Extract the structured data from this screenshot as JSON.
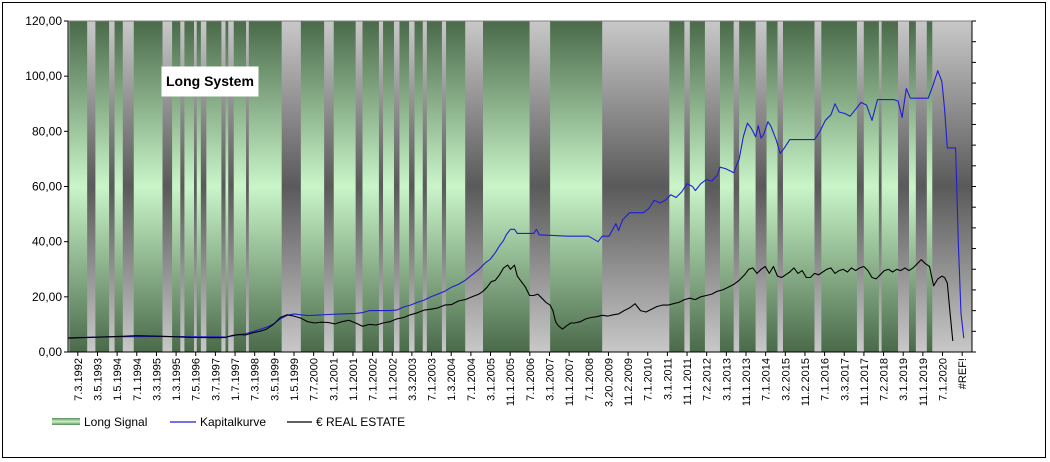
{
  "chart_data": {
    "type": "line",
    "title": "Long System",
    "ylim": [
      0,
      120
    ],
    "yticks": [
      "0,00",
      "20,00",
      "40,00",
      "60,00",
      "80,00",
      "100,00",
      "120,00"
    ],
    "ytick_values": [
      0,
      20,
      40,
      60,
      80,
      100,
      120
    ],
    "xticks": [
      "7.3.1992",
      "3.5.1993",
      "1.5.1994",
      "7.1.1994",
      "3.3.1995",
      "1.3.1995",
      "7.5.1996",
      "3.7.1997",
      "1.7.1997",
      "7.3.1998",
      "3.5.1999",
      "1.5.1999",
      "7.7.2000",
      "3.1.2001",
      "1.1.2001",
      "7.1.2002",
      "1.1.2002",
      "3.3.2003",
      "7.1.2003",
      "1.3.2004",
      "7.1.2004",
      "3.1.2005",
      "11.1.2005",
      "7.1.2006",
      "3.1.2007",
      "11.1.2007",
      "7.1.2008",
      "3.20.2009",
      "11.2.2009",
      "7.1.2010",
      "3.1.2011",
      "11.1.2011",
      "7.2.2012",
      "3.1.2013",
      "11.1.2013",
      "7.1.2014",
      "3.2.2015",
      "11.2.2015",
      "7.1.2016",
      "3.3.2017",
      "11.1.2017",
      "7.2.2018",
      "3.1.2019",
      "11.1.2019",
      "7.1.2020",
      "#REF!"
    ],
    "legend": [
      {
        "name": "Long Signal",
        "kind": "band",
        "color": "#8fd08f"
      },
      {
        "name": "Kapitalkurve",
        "kind": "line",
        "color": "#1f1fd0"
      },
      {
        "name": "€ REAL ESTATE",
        "kind": "line",
        "color": "#000000"
      }
    ],
    "long_signal_periods": [
      [
        1,
        14
      ],
      [
        20,
        30
      ],
      [
        34,
        40
      ],
      [
        48,
        69
      ],
      [
        76,
        82
      ],
      [
        85,
        92
      ],
      [
        94,
        97
      ],
      [
        101,
        112
      ],
      [
        115,
        117
      ],
      [
        121,
        130
      ],
      [
        132,
        156
      ],
      [
        170,
        187
      ],
      [
        194,
        210
      ],
      [
        215,
        227
      ],
      [
        230,
        238
      ],
      [
        242,
        249
      ],
      [
        253,
        259
      ],
      [
        262,
        273
      ],
      [
        276,
        290
      ],
      [
        303,
        337
      ],
      [
        352,
        390
      ],
      [
        439,
        450
      ],
      [
        454,
        465
      ],
      [
        476,
        486
      ],
      [
        490,
        502
      ],
      [
        510,
        518
      ],
      [
        522,
        545
      ],
      [
        550,
        576
      ],
      [
        581,
        592
      ],
      [
        594,
        606
      ],
      [
        614,
        619
      ],
      [
        627,
        631
      ]
    ],
    "series": [
      {
        "name": "Kapitalkurve",
        "color": "#1f1fd0",
        "points": [
          [
            0,
            5.2
          ],
          [
            10,
            5.3
          ],
          [
            30,
            5.5
          ],
          [
            60,
            5.6
          ],
          [
            80,
            5.6
          ],
          [
            100,
            5.5
          ],
          [
            110,
            5.5
          ],
          [
            115,
            5.4
          ],
          [
            120,
            5.8
          ],
          [
            125,
            6.3
          ],
          [
            130,
            6.7
          ],
          [
            135,
            7.4
          ],
          [
            140,
            8.2
          ],
          [
            145,
            9.0
          ],
          [
            150,
            10.2
          ],
          [
            155,
            12.0
          ],
          [
            160,
            13.3
          ],
          [
            165,
            13.8
          ],
          [
            170,
            13.5
          ],
          [
            175,
            13.2
          ],
          [
            180,
            13.3
          ],
          [
            190,
            13.6
          ],
          [
            200,
            13.8
          ],
          [
            210,
            14.0
          ],
          [
            215,
            14.3
          ],
          [
            220,
            15.0
          ],
          [
            235,
            15.0
          ],
          [
            240,
            15.2
          ],
          [
            245,
            16.3
          ],
          [
            250,
            17.0
          ],
          [
            255,
            18.0
          ],
          [
            260,
            18.8
          ],
          [
            265,
            20.0
          ],
          [
            270,
            21.0
          ],
          [
            275,
            22.0
          ],
          [
            280,
            23.5
          ],
          [
            285,
            24.5
          ],
          [
            290,
            26.0
          ],
          [
            295,
            28.0
          ],
          [
            300,
            30.0
          ],
          [
            305,
            32.5
          ],
          [
            308,
            33.5
          ],
          [
            312,
            36.0
          ],
          [
            315,
            38.5
          ],
          [
            318,
            40.5
          ],
          [
            320,
            42.5
          ],
          [
            323,
            44.5
          ],
          [
            326,
            44.5
          ],
          [
            328,
            43.0
          ],
          [
            340,
            43.0
          ],
          [
            342,
            44.5
          ],
          [
            344,
            42.5
          ],
          [
            365,
            42.0
          ],
          [
            380,
            42.0
          ],
          [
            387,
            40.0
          ],
          [
            390,
            42.0
          ],
          [
            395,
            42.0
          ],
          [
            400,
            46.5
          ],
          [
            402,
            44.0
          ],
          [
            405,
            48.0
          ],
          [
            410,
            50.5
          ],
          [
            420,
            50.5
          ],
          [
            424,
            52.0
          ],
          [
            428,
            55.0
          ],
          [
            432,
            54.0
          ],
          [
            436,
            55.0
          ],
          [
            440,
            57.0
          ],
          [
            444,
            56.0
          ],
          [
            448,
            58.0
          ],
          [
            452,
            61.0
          ],
          [
            456,
            60.0
          ],
          [
            458,
            58.5
          ],
          [
            462,
            61.0
          ],
          [
            466,
            62.5
          ],
          [
            470,
            62.0
          ],
          [
            474,
            64.0
          ],
          [
            476,
            67.0
          ],
          [
            480,
            66.5
          ],
          [
            484,
            65.5
          ],
          [
            486,
            65.0
          ],
          [
            490,
            70.0
          ],
          [
            493,
            78.0
          ],
          [
            496,
            83.0
          ],
          [
            499,
            81.0
          ],
          [
            502,
            78.0
          ],
          [
            504,
            82.0
          ],
          [
            506,
            77.5
          ],
          [
            508,
            79.0
          ],
          [
            511,
            83.5
          ],
          [
            513,
            82.0
          ],
          [
            517,
            77.0
          ],
          [
            520,
            72.0
          ],
          [
            523,
            74.0
          ],
          [
            527,
            77.0
          ],
          [
            545,
            77.0
          ],
          [
            549,
            80.0
          ],
          [
            553,
            84.0
          ],
          [
            557,
            86.0
          ],
          [
            560,
            90.0
          ],
          [
            563,
            87.0
          ],
          [
            567,
            86.5
          ],
          [
            571,
            85.5
          ],
          [
            575,
            88.0
          ],
          [
            579,
            90.5
          ],
          [
            583,
            89.5
          ],
          [
            587,
            84.0
          ],
          [
            591,
            91.5
          ],
          [
            603,
            91.5
          ],
          [
            606,
            91.0
          ],
          [
            609,
            85.0
          ],
          [
            612,
            95.5
          ],
          [
            615,
            92.0
          ],
          [
            628,
            92.0
          ],
          [
            631,
            96.0
          ],
          [
            635,
            102.0
          ],
          [
            638,
            98.0
          ],
          [
            640,
            88.0
          ],
          [
            642,
            74.0
          ],
          [
            648,
            74.0
          ],
          [
            650,
            40.0
          ],
          [
            652,
            14.0
          ],
          [
            654,
            5.0
          ]
        ]
      },
      {
        "name": "€ REAL ESTATE",
        "color": "#000000",
        "points": [
          [
            0,
            5.0
          ],
          [
            10,
            5.2
          ],
          [
            30,
            5.5
          ],
          [
            50,
            5.9
          ],
          [
            70,
            5.7
          ],
          [
            90,
            5.3
          ],
          [
            110,
            5.2
          ],
          [
            115,
            5.3
          ],
          [
            120,
            6.0
          ],
          [
            125,
            6.3
          ],
          [
            130,
            6.2
          ],
          [
            135,
            7.0
          ],
          [
            140,
            7.5
          ],
          [
            145,
            8.3
          ],
          [
            150,
            10.0
          ],
          [
            155,
            12.5
          ],
          [
            160,
            13.5
          ],
          [
            165,
            13.0
          ],
          [
            170,
            12.3
          ],
          [
            175,
            11.0
          ],
          [
            180,
            10.5
          ],
          [
            185,
            10.8
          ],
          [
            190,
            10.7
          ],
          [
            195,
            10.2
          ],
          [
            200,
            11.0
          ],
          [
            205,
            11.5
          ],
          [
            210,
            10.5
          ],
          [
            215,
            9.3
          ],
          [
            220,
            10.0
          ],
          [
            225,
            9.8
          ],
          [
            230,
            10.5
          ],
          [
            235,
            11.0
          ],
          [
            240,
            12.0
          ],
          [
            245,
            12.5
          ],
          [
            250,
            13.5
          ],
          [
            255,
            14.2
          ],
          [
            260,
            15.2
          ],
          [
            265,
            15.5
          ],
          [
            270,
            16.0
          ],
          [
            275,
            17.0
          ],
          [
            280,
            17.2
          ],
          [
            285,
            18.5
          ],
          [
            290,
            19.0
          ],
          [
            295,
            20.0
          ],
          [
            300,
            21.0
          ],
          [
            303,
            22.0
          ],
          [
            306,
            23.5
          ],
          [
            309,
            25.5
          ],
          [
            312,
            26.0
          ],
          [
            315,
            28.0
          ],
          [
            318,
            30.5
          ],
          [
            321,
            31.5
          ],
          [
            323,
            30.0
          ],
          [
            326,
            31.5
          ],
          [
            328,
            27.5
          ],
          [
            331,
            25.5
          ],
          [
            334,
            23.5
          ],
          [
            337,
            20.5
          ],
          [
            340,
            20.5
          ],
          [
            343,
            21.0
          ],
          [
            346,
            19.5
          ],
          [
            349,
            18.0
          ],
          [
            352,
            17.0
          ],
          [
            354,
            15.0
          ],
          [
            356,
            11.0
          ],
          [
            358,
            9.5
          ],
          [
            361,
            8.3
          ],
          [
            364,
            9.5
          ],
          [
            367,
            10.5
          ],
          [
            370,
            10.5
          ],
          [
            374,
            11.0
          ],
          [
            378,
            12.0
          ],
          [
            382,
            12.5
          ],
          [
            386,
            12.8
          ],
          [
            390,
            13.3
          ],
          [
            394,
            13.0
          ],
          [
            398,
            13.5
          ],
          [
            402,
            13.8
          ],
          [
            406,
            15.0
          ],
          [
            410,
            16.0
          ],
          [
            414,
            17.5
          ],
          [
            418,
            15.0
          ],
          [
            422,
            14.5
          ],
          [
            426,
            15.5
          ],
          [
            430,
            16.5
          ],
          [
            434,
            17.0
          ],
          [
            438,
            17.0
          ],
          [
            442,
            17.5
          ],
          [
            446,
            18.0
          ],
          [
            450,
            19.0
          ],
          [
            454,
            19.5
          ],
          [
            458,
            19.0
          ],
          [
            462,
            20.0
          ],
          [
            466,
            20.5
          ],
          [
            470,
            21.0
          ],
          [
            474,
            22.0
          ],
          [
            478,
            22.5
          ],
          [
            482,
            23.5
          ],
          [
            486,
            24.5
          ],
          [
            490,
            26.0
          ],
          [
            494,
            28.0
          ],
          [
            497,
            30.0
          ],
          [
            500,
            30.5
          ],
          [
            503,
            28.5
          ],
          [
            506,
            30.0
          ],
          [
            509,
            31.0
          ],
          [
            512,
            28.5
          ],
          [
            515,
            31.0
          ],
          [
            518,
            27.5
          ],
          [
            521,
            27.0
          ],
          [
            524,
            28.0
          ],
          [
            527,
            29.0
          ],
          [
            530,
            30.5
          ],
          [
            533,
            28.5
          ],
          [
            536,
            29.5
          ],
          [
            539,
            27.0
          ],
          [
            542,
            27.0
          ],
          [
            545,
            28.5
          ],
          [
            548,
            28.0
          ],
          [
            551,
            29.0
          ],
          [
            554,
            30.0
          ],
          [
            557,
            30.5
          ],
          [
            560,
            28.5
          ],
          [
            563,
            29.5
          ],
          [
            566,
            30.0
          ],
          [
            569,
            29.0
          ],
          [
            572,
            30.5
          ],
          [
            575,
            29.5
          ],
          [
            578,
            30.5
          ],
          [
            581,
            31.0
          ],
          [
            584,
            29.5
          ],
          [
            587,
            27.0
          ],
          [
            590,
            26.5
          ],
          [
            593,
            28.0
          ],
          [
            596,
            29.5
          ],
          [
            599,
            30.0
          ],
          [
            602,
            29.0
          ],
          [
            605,
            30.0
          ],
          [
            608,
            29.5
          ],
          [
            611,
            30.5
          ],
          [
            614,
            29.5
          ],
          [
            617,
            30.5
          ],
          [
            620,
            32.0
          ],
          [
            623,
            33.5
          ],
          [
            626,
            32.0
          ],
          [
            629,
            31.0
          ],
          [
            632,
            24.0
          ],
          [
            635,
            26.5
          ],
          [
            638,
            27.5
          ],
          [
            640,
            27.0
          ],
          [
            642,
            25.0
          ],
          [
            644,
            14.0
          ],
          [
            646,
            4.0
          ]
        ]
      }
    ],
    "x_range": [
      0,
      660
    ]
  }
}
